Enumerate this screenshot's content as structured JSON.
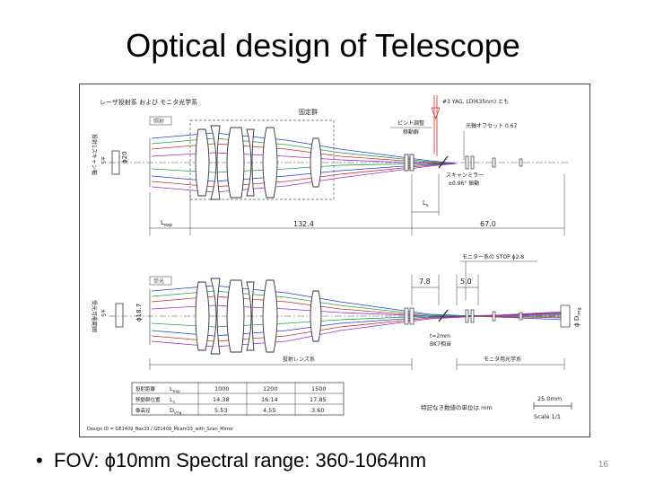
{
  "slide": {
    "title": "Optical design of Telescope",
    "bullet": "FOV: ϕ10mm  Spectral range: 360-1064nm",
    "page_number": "16"
  },
  "figure": {
    "header": "レーザ投射系 および モニタ光学系",
    "fixed_group": "固定群",
    "laser_note": "#3 YAG, LD(635nm) とも",
    "focus_adjust": "ピント調整",
    "moving_group": "移動群",
    "tilt_offset": "光軸オフセット 0.67",
    "scan_mirror": "スキャンミラー",
    "scan_angle": "±0.96° 振動",
    "top_left_label": "投射1スキャン幅",
    "top_pm5": "±5",
    "phi20": "ϕ20",
    "arrow_left": "照射",
    "lexp": "L",
    "lexp_sub": "exp",
    "dim_132": "132.4",
    "dim_67": "67.0",
    "ls": "L",
    "ls_sub": "s",
    "monitor_stop": "モニター系の STOP ϕ2.8",
    "dim_78": "7.8",
    "dim_50": "5.0",
    "bottom_left_label": "受光可能範囲",
    "bottom_pm5": "±5",
    "phi187": "ϕ18.7",
    "return_label": "受光",
    "plate_t": "t=2mm",
    "plate_mat": "BK7相当",
    "projection_lens": "投射レンズ系",
    "monitor_optics": "モニタ用光学系",
    "phi_dimg": "ϕ D",
    "dimg_sub": "img",
    "units_note": "特記なき数値の単位は mm",
    "scale_len": "25.0mm",
    "scale": "Scale  1/1",
    "design_id": "Design ID = GE1409_Box33 / GE1409_Mcam33_with_Scan_Mirror",
    "table": {
      "rows": [
        {
          "label": "投射距離",
          "sym": "L",
          "sub": "exp",
          "values": [
            "1000",
            "1200",
            "1500"
          ]
        },
        {
          "label": "移動群位置",
          "sym": "L",
          "sub": "s",
          "values": [
            "14.38",
            "16.14",
            "17.85"
          ]
        },
        {
          "label": "像高径",
          "sym": "D",
          "sub": "img",
          "values": [
            "5.53",
            "4.55",
            "3.60"
          ]
        }
      ]
    }
  }
}
